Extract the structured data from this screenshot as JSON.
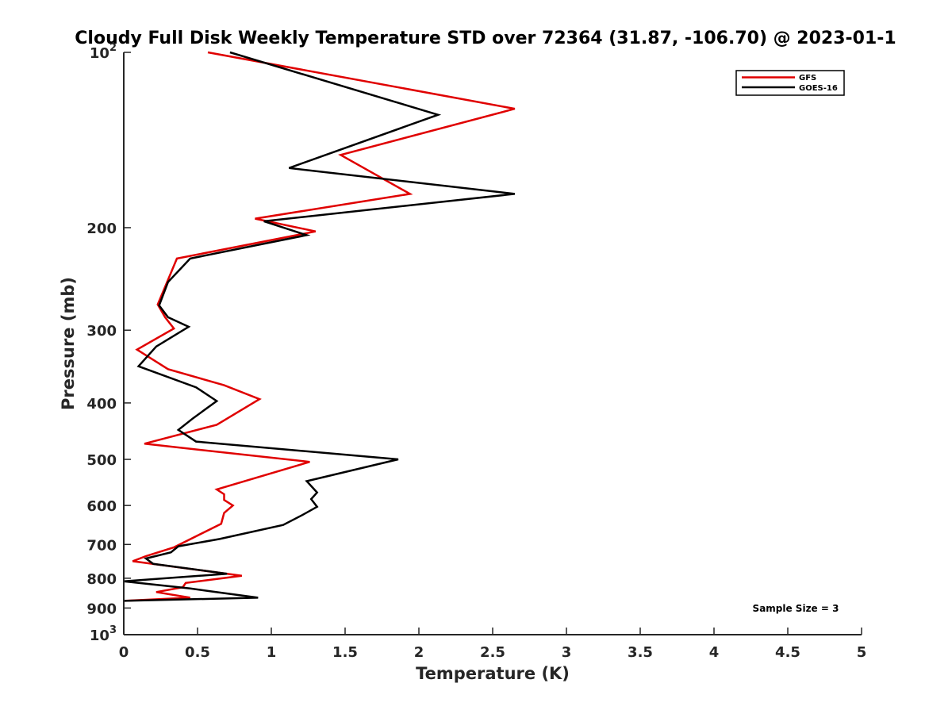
{
  "chart_data": {
    "type": "line",
    "title": "Cloudy Full Disk Weekly Temperature STD over 72364 (31.87, -106.70) @ 2023-01-1",
    "xlabel": "Temperature (K)",
    "ylabel": "Pressure (mb)",
    "xlim": [
      0,
      5
    ],
    "ylim": [
      100,
      1000
    ],
    "y_scale": "log",
    "y_reversed": true,
    "grid": false,
    "x_ticks": [
      {
        "value": 0,
        "label": "0"
      },
      {
        "value": 0.5,
        "label": "0.5"
      },
      {
        "value": 1,
        "label": "1"
      },
      {
        "value": 1.5,
        "label": "1.5"
      },
      {
        "value": 2,
        "label": "2"
      },
      {
        "value": 2.5,
        "label": "2.5"
      },
      {
        "value": 3,
        "label": "3"
      },
      {
        "value": 3.5,
        "label": "3.5"
      },
      {
        "value": 4,
        "label": "4"
      },
      {
        "value": 4.5,
        "label": "4.5"
      },
      {
        "value": 5,
        "label": "5"
      }
    ],
    "y_ticks": [
      {
        "value": 100,
        "base": "10",
        "exp": "2"
      },
      {
        "value": 200,
        "label": "200"
      },
      {
        "value": 300,
        "label": "300"
      },
      {
        "value": 400,
        "label": "400"
      },
      {
        "value": 500,
        "label": "500"
      },
      {
        "value": 600,
        "label": "600"
      },
      {
        "value": 700,
        "label": "700"
      },
      {
        "value": 800,
        "label": "800"
      },
      {
        "value": 900,
        "label": "900"
      },
      {
        "value": 1000,
        "base": "10",
        "exp": "3"
      }
    ],
    "legend_position": "top-right",
    "annotation": "Sample Size = 3",
    "series": [
      {
        "name": "GFS",
        "color": "#e00000",
        "points": [
          [
            0.57,
            100
          ],
          [
            2.65,
            125
          ],
          [
            1.47,
            150
          ],
          [
            1.94,
            175
          ],
          [
            0.89,
            193
          ],
          [
            1.3,
            203
          ],
          [
            0.36,
            226
          ],
          [
            0.23,
            271
          ],
          [
            0.28,
            285
          ],
          [
            0.34,
            298
          ],
          [
            0.09,
            324
          ],
          [
            0.3,
            350
          ],
          [
            0.68,
            373
          ],
          [
            0.92,
            394
          ],
          [
            0.63,
            436
          ],
          [
            0.14,
            470
          ],
          [
            1.26,
            505
          ],
          [
            0.63,
            563
          ],
          [
            0.68,
            574
          ],
          [
            0.68,
            587
          ],
          [
            0.74,
            600
          ],
          [
            0.68,
            618
          ],
          [
            0.66,
            645
          ],
          [
            0.34,
            708
          ],
          [
            0.15,
            733
          ],
          [
            0.06,
            748
          ],
          [
            0.8,
            792
          ],
          [
            0.42,
            815
          ],
          [
            0.4,
            829
          ],
          [
            0.22,
            845
          ],
          [
            0.45,
            864
          ],
          [
            0.0,
            875
          ]
        ]
      },
      {
        "name": "GOES-16",
        "color": "#000000",
        "points": [
          [
            0.72,
            100
          ],
          [
            2.13,
            128
          ],
          [
            1.12,
            158
          ],
          [
            2.65,
            175
          ],
          [
            0.95,
            195
          ],
          [
            1.24,
            206
          ],
          [
            0.45,
            226
          ],
          [
            0.3,
            248
          ],
          [
            0.24,
            272
          ],
          [
            0.3,
            285
          ],
          [
            0.44,
            296
          ],
          [
            0.22,
            320
          ],
          [
            0.1,
            346
          ],
          [
            0.49,
            376
          ],
          [
            0.63,
            397
          ],
          [
            0.47,
            425
          ],
          [
            0.37,
            445
          ],
          [
            0.49,
            466
          ],
          [
            1.86,
            500
          ],
          [
            1.24,
            545
          ],
          [
            1.31,
            570
          ],
          [
            1.27,
            585
          ],
          [
            1.31,
            603
          ],
          [
            1.21,
            623
          ],
          [
            1.08,
            648
          ],
          [
            0.65,
            685
          ],
          [
            0.37,
            705
          ],
          [
            0.32,
            722
          ],
          [
            0.15,
            740
          ],
          [
            0.2,
            756
          ],
          [
            0.7,
            786
          ],
          [
            0.0,
            810
          ],
          [
            0.45,
            833
          ],
          [
            0.6,
            843
          ],
          [
            0.91,
            864
          ],
          [
            0.0,
            875
          ]
        ]
      }
    ]
  }
}
